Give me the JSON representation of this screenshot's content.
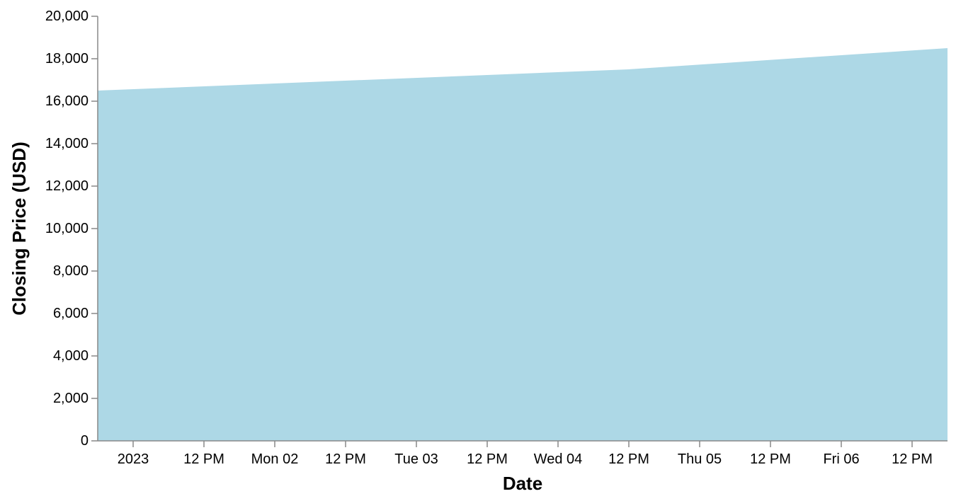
{
  "chart_data": {
    "type": "area",
    "title": "",
    "xlabel": "Date",
    "ylabel": "Closing Price (USD)",
    "x": [
      "2022-12-31T18:00",
      "2023-01-04T12:00",
      "2023-01-06T18:00"
    ],
    "y": [
      16500,
      17500,
      18500
    ],
    "xlim": [
      "2022-12-31T18:00",
      "2023-01-06T18:00"
    ],
    "ylim": [
      0,
      20000
    ],
    "x_tick_labels": [
      "2023",
      "12 PM",
      "Mon 02",
      "12 PM",
      "Tue 03",
      "12 PM",
      "Wed 04",
      "12 PM",
      "Thu 05",
      "12 PM",
      "Fri 06",
      "12 PM"
    ],
    "y_tick_labels": [
      "0",
      "2,000",
      "4,000",
      "6,000",
      "8,000",
      "10,000",
      "12,000",
      "14,000",
      "16,000",
      "18,000",
      "20,000"
    ],
    "grid": false,
    "legend": "none",
    "colors": {
      "area": "#add8e6",
      "axis": "#888888",
      "text": "#000000"
    }
  }
}
